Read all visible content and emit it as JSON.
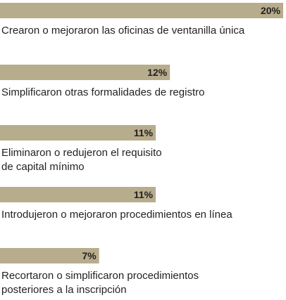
{
  "chart_data": {
    "type": "bar",
    "orientation": "horizontal",
    "color": "#b7ad8d",
    "categories": [
      [
        "Crearon o mejoraron las oficinas de ventanilla única"
      ],
      [
        "Simplificaron otras formalidades de registro"
      ],
      [
        "Eliminaron o redujeron el requisito",
        "de capital mínimo"
      ],
      [
        "Introdujeron o mejoraron procedimientos en línea"
      ],
      [
        "Recortaron o simplificaron procedimientos",
        "posteriores a la inscripción"
      ]
    ],
    "values": [
      20,
      12,
      11,
      11,
      7
    ],
    "value_labels": [
      "20%",
      "12%",
      "11%",
      "11%",
      "7%"
    ],
    "xlim": [
      0,
      20
    ]
  }
}
